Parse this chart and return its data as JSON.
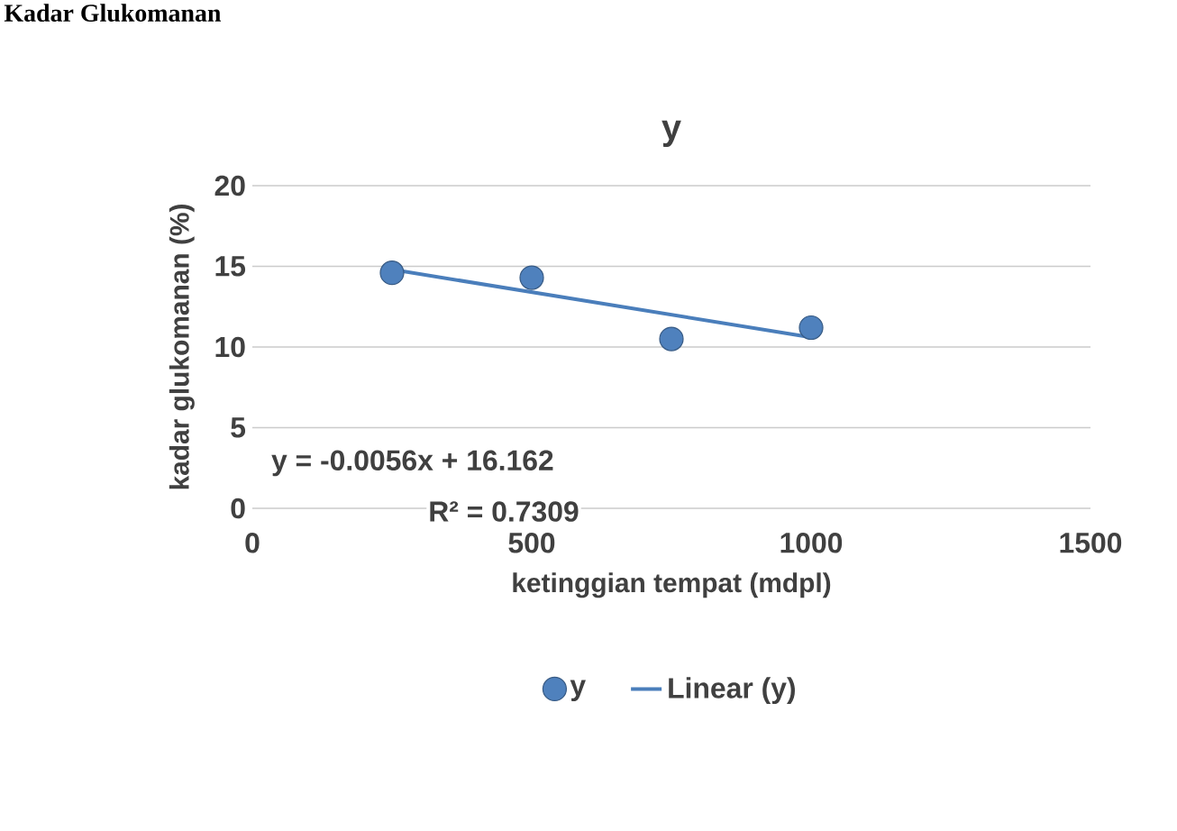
{
  "chart_data": {
    "type": "scatter",
    "title": "Kadar Glukomanan",
    "subtitle": "y",
    "xlabel": "ketinggian tempat (mdpl)",
    "ylabel": "kadar glukomanan (%)",
    "x": [
      250,
      500,
      750,
      1000
    ],
    "series": [
      {
        "name": "y",
        "color": "#4f81bd",
        "values": [
          14.6,
          14.3,
          10.5,
          11.2
        ],
        "marker": "circle"
      },
      {
        "name": "Linear (y)",
        "type": "line",
        "color": "#4a7ebb",
        "x": [
          250,
          1000
        ],
        "values": [
          14.8,
          10.6
        ],
        "marker": "none",
        "line_style": "solid"
      }
    ],
    "annotations": [
      "y = -0.0056x + 16.162",
      "R² = 0.7309"
    ],
    "xlim": [
      0,
      1500
    ],
    "xticks": [
      0,
      500,
      1000,
      1500
    ],
    "ylim": [
      0,
      20
    ],
    "yticks": [
      0,
      5,
      10,
      15,
      20
    ],
    "grid": "y",
    "legend": "bottom"
  }
}
